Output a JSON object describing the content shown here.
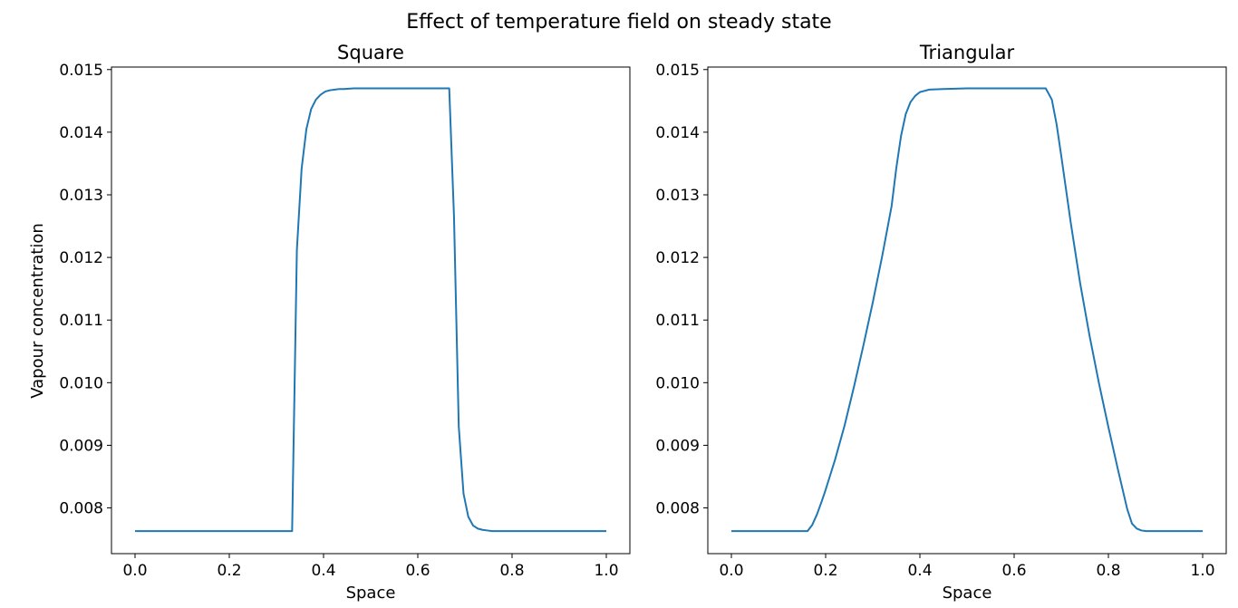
{
  "figure": {
    "title": "Effect of temperature field on steady state"
  },
  "chart_data": [
    {
      "type": "line",
      "title": "Square",
      "xlabel": "Space",
      "ylabel": "Vapour concentration",
      "xlim": [
        -0.05,
        1.05
      ],
      "ylim": [
        0.00727,
        0.01504
      ],
      "xticks": [
        0.0,
        0.2,
        0.4,
        0.6,
        0.8,
        1.0
      ],
      "xtick_labels": [
        "0.0",
        "0.2",
        "0.4",
        "0.6",
        "0.8",
        "1.0"
      ],
      "yticks": [
        0.008,
        0.009,
        0.01,
        0.011,
        0.012,
        0.013,
        0.014,
        0.015
      ],
      "ytick_labels": [
        "0.008",
        "0.009",
        "0.010",
        "0.011",
        "0.012",
        "0.013",
        "0.014",
        "0.015"
      ],
      "grid": false,
      "line_color": "#1f77b4",
      "series": [
        {
          "x": [
            0.0,
            0.1,
            0.2,
            0.3,
            0.3333,
            0.3434,
            0.3535,
            0.3636,
            0.3737,
            0.3838,
            0.3939,
            0.404,
            0.4141,
            0.4242,
            0.4343,
            0.4444,
            0.4646,
            0.4848,
            0.5,
            0.6,
            0.6566,
            0.6667,
            0.6768,
            0.6869,
            0.697,
            0.7071,
            0.7172,
            0.7273,
            0.7374,
            0.7475,
            0.7576,
            0.7778,
            0.8,
            0.9,
            1.0
          ],
          "y": [
            0.00763,
            0.00763,
            0.00763,
            0.00763,
            0.00763,
            0.01212,
            0.01342,
            0.01405,
            0.01437,
            0.01452,
            0.0146,
            0.01465,
            0.01467,
            0.01468,
            0.01469,
            0.01469,
            0.0147,
            0.0147,
            0.0147,
            0.0147,
            0.0147,
            0.0147,
            0.01265,
            0.0093,
            0.00823,
            0.00786,
            0.00772,
            0.00767,
            0.00765,
            0.00764,
            0.00763,
            0.00763,
            0.00763,
            0.00763,
            0.00763
          ]
        }
      ]
    },
    {
      "type": "line",
      "title": "Triangular",
      "xlabel": "Space",
      "ylabel": "",
      "xlim": [
        -0.05,
        1.05
      ],
      "ylim": [
        0.00727,
        0.01504
      ],
      "xticks": [
        0.0,
        0.2,
        0.4,
        0.6,
        0.8,
        1.0
      ],
      "xtick_labels": [
        "0.0",
        "0.2",
        "0.4",
        "0.6",
        "0.8",
        "1.0"
      ],
      "yticks": [
        0.008,
        0.009,
        0.01,
        0.011,
        0.012,
        0.013,
        0.014,
        0.015
      ],
      "ytick_labels": [
        "0.008",
        "0.009",
        "0.010",
        "0.011",
        "0.012",
        "0.013",
        "0.014",
        "0.015"
      ],
      "grid": false,
      "line_color": "#1f77b4",
      "series": [
        {
          "x": [
            0.0,
            0.1,
            0.1616,
            0.1717,
            0.1818,
            0.1919,
            0.2,
            0.22,
            0.24,
            0.26,
            0.28,
            0.3,
            0.32,
            0.34,
            0.35,
            0.36,
            0.37,
            0.38,
            0.39,
            0.4,
            0.42,
            0.45,
            0.5,
            0.6,
            0.66,
            0.667,
            0.68,
            0.69,
            0.7,
            0.72,
            0.74,
            0.76,
            0.78,
            0.8,
            0.82,
            0.84,
            0.85,
            0.86,
            0.87,
            0.88,
            0.9,
            1.0
          ],
          "y": [
            0.00763,
            0.00763,
            0.00763,
            0.00773,
            0.0079,
            0.00811,
            0.00829,
            0.00877,
            0.00931,
            0.00993,
            0.01059,
            0.01128,
            0.01202,
            0.01282,
            0.01343,
            0.01394,
            0.01429,
            0.01448,
            0.01458,
            0.01464,
            0.01468,
            0.01469,
            0.0147,
            0.0147,
            0.0147,
            0.0147,
            0.01452,
            0.01413,
            0.01362,
            0.01256,
            0.01159,
            0.01075,
            0.00999,
            0.00929,
            0.00862,
            0.00798,
            0.00775,
            0.00767,
            0.00764,
            0.00763,
            0.00763,
            0.00763
          ]
        }
      ]
    }
  ]
}
